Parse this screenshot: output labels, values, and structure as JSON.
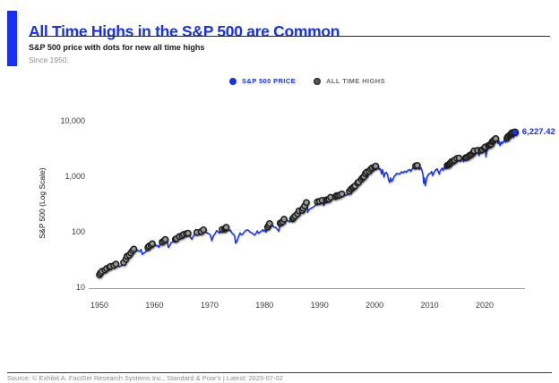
{
  "header": {
    "title": "All Time Highs in the S&P 500 are Common",
    "subtitle": "S&P 500 price with dots for new all time highs",
    "note": "Since 1950."
  },
  "legend": {
    "items": [
      {
        "label": "S&P 500 PRICE",
        "color": "#1631f2"
      },
      {
        "label": "ALL TIME HIGHS",
        "color": "#565656"
      }
    ]
  },
  "footer": {
    "source": "Source: © Exhibit A, FactSet Research Systems Inc., Standard & Poor's | Latest: 2025-07-02"
  },
  "colors": {
    "accent_blue": "#1631f2",
    "ath_dot_fill": "#969696",
    "ath_dot_ring": "#1f1f1f",
    "axis_gray": "#9b9b9b"
  },
  "chart_data": {
    "type": "line",
    "title": "All Time Highs in the S&P 500 are Common",
    "ylabel": "S&P 500 (Log Scale)",
    "yscale": "log",
    "ylim": [
      10,
      10000
    ],
    "yticks": [
      {
        "v": 10000,
        "label": "10,000"
      },
      {
        "v": 1000,
        "label": "1,000"
      },
      {
        "v": 100,
        "label": "100"
      },
      {
        "v": 10,
        "label": "10"
      }
    ],
    "xticks": [
      {
        "v": 1950,
        "label": "1950"
      },
      {
        "v": 1960,
        "label": "1960"
      },
      {
        "v": 1970,
        "label": "1970"
      },
      {
        "v": 1980,
        "label": "1980"
      },
      {
        "v": 1990,
        "label": "1990"
      },
      {
        "v": 2000,
        "label": "2000"
      },
      {
        "v": 2010,
        "label": "2010"
      },
      {
        "v": 2020,
        "label": "2020"
      }
    ],
    "grid": false,
    "legend_position": "top-center",
    "end_label": "6,227.42",
    "last_value": 6227.42,
    "ath_definition": "gray dot at each point where the series sets a new running maximum; final point is a blue dot",
    "series_name": "S&P 500 PRICE",
    "points": [
      [
        1950.0,
        16.8
      ],
      [
        1950.2,
        18.1
      ],
      [
        1950.45,
        19.4
      ],
      [
        1950.55,
        16.9
      ],
      [
        1950.75,
        18.6
      ],
      [
        1951.0,
        20.4
      ],
      [
        1951.3,
        21.7
      ],
      [
        1951.5,
        21.0
      ],
      [
        1951.8,
        23.0
      ],
      [
        1952.0,
        23.8
      ],
      [
        1952.3,
        23.4
      ],
      [
        1952.6,
        24.6
      ],
      [
        1953.0,
        26.2
      ],
      [
        1953.3,
        25.0
      ],
      [
        1953.7,
        23.4
      ],
      [
        1954.0,
        24.8
      ],
      [
        1954.4,
        28.0
      ],
      [
        1954.8,
        32.0
      ],
      [
        1955.0,
        36.0
      ],
      [
        1955.4,
        37.9
      ],
      [
        1955.7,
        41.5
      ],
      [
        1956.0,
        45.5
      ],
      [
        1956.25,
        48.8
      ],
      [
        1956.5,
        46.3
      ],
      [
        1956.75,
        45.3
      ],
      [
        1957.0,
        46.2
      ],
      [
        1957.3,
        44.0
      ],
      [
        1957.55,
        47.9
      ],
      [
        1957.8,
        39.0
      ],
      [
        1958.0,
        41.1
      ],
      [
        1958.4,
        43.4
      ],
      [
        1958.8,
        52.0
      ],
      [
        1959.0,
        55.2
      ],
      [
        1959.4,
        57.5
      ],
      [
        1959.6,
        60.7
      ],
      [
        1959.9,
        57.4
      ],
      [
        1960.0,
        59.9
      ],
      [
        1960.3,
        55.3
      ],
      [
        1960.6,
        56.8
      ],
      [
        1960.8,
        52.3
      ],
      [
        1961.0,
        58.1
      ],
      [
        1961.4,
        65.3
      ],
      [
        1961.7,
        68.5
      ],
      [
        1961.96,
        72.6
      ],
      [
        1962.2,
        69.6
      ],
      [
        1962.35,
        65.2
      ],
      [
        1962.5,
        52.3
      ],
      [
        1962.75,
        56.3
      ],
      [
        1963.0,
        63.1
      ],
      [
        1963.4,
        66.6
      ],
      [
        1963.8,
        73.2
      ],
      [
        1964.0,
        75.0
      ],
      [
        1964.5,
        81.7
      ],
      [
        1965.0,
        84.8
      ],
      [
        1965.3,
        89.3
      ],
      [
        1965.5,
        84.1
      ],
      [
        1965.8,
        92.4
      ],
      [
        1966.1,
        94.1
      ],
      [
        1966.4,
        86.1
      ],
      [
        1966.6,
        77.1
      ],
      [
        1966.8,
        73.2
      ],
      [
        1967.0,
        80.3
      ],
      [
        1967.4,
        94.0
      ],
      [
        1967.7,
        97.6
      ],
      [
        1968.0,
        96.5
      ],
      [
        1968.2,
        89.1
      ],
      [
        1968.5,
        100.5
      ],
      [
        1968.9,
        108.4
      ],
      [
        1969.1,
        103.9
      ],
      [
        1969.4,
        97.7
      ],
      [
        1969.6,
        94.5
      ],
      [
        1969.9,
        92.1
      ],
      [
        1970.0,
        90.3
      ],
      [
        1970.2,
        85.9
      ],
      [
        1970.4,
        69.3
      ],
      [
        1970.7,
        84.2
      ],
      [
        1971.0,
        92.2
      ],
      [
        1971.3,
        104.8
      ],
      [
        1971.6,
        99.0
      ],
      [
        1971.8,
        94.2
      ],
      [
        1972.0,
        102.1
      ],
      [
        1972.3,
        110.3
      ],
      [
        1972.55,
        107.1
      ],
      [
        1972.75,
        111.2
      ],
      [
        1972.9,
        116.9
      ],
      [
        1973.03,
        120.2
      ],
      [
        1973.3,
        109.8
      ],
      [
        1973.6,
        104.3
      ],
      [
        1973.8,
        108.3
      ],
      [
        1974.0,
        97.6
      ],
      [
        1974.3,
        90.3
      ],
      [
        1974.55,
        86.0
      ],
      [
        1974.75,
        62.3
      ],
      [
        1975.0,
        68.6
      ],
      [
        1975.3,
        83.6
      ],
      [
        1975.55,
        95.2
      ],
      [
        1975.8,
        88.1
      ],
      [
        1976.0,
        90.2
      ],
      [
        1976.4,
        101.6
      ],
      [
        1976.7,
        107.8
      ],
      [
        1977.0,
        107.5
      ],
      [
        1977.4,
        98.4
      ],
      [
        1977.8,
        94.3
      ],
      [
        1978.0,
        90.2
      ],
      [
        1978.2,
        86.9
      ],
      [
        1978.5,
        95.5
      ],
      [
        1978.7,
        103.9
      ],
      [
        1978.9,
        94.1
      ],
      [
        1979.0,
        96.1
      ],
      [
        1979.4,
        101.8
      ],
      [
        1979.7,
        108.6
      ],
      [
        1979.85,
        102.9
      ],
      [
        1980.0,
        107.9
      ],
      [
        1980.25,
        98.2
      ],
      [
        1980.55,
        121.4
      ],
      [
        1980.75,
        130.4
      ],
      [
        1980.92,
        140.5
      ],
      [
        1981.1,
        129.6
      ],
      [
        1981.4,
        132.8
      ],
      [
        1981.7,
        122.3
      ],
      [
        1982.0,
        120.4
      ],
      [
        1982.3,
        111.9
      ],
      [
        1982.6,
        102.4
      ],
      [
        1982.85,
        143.0
      ],
      [
        1983.0,
        145.3
      ],
      [
        1983.3,
        152.9
      ],
      [
        1983.55,
        168.1
      ],
      [
        1983.8,
        163.5
      ],
      [
        1984.0,
        164.9
      ],
      [
        1984.3,
        157.3
      ],
      [
        1984.55,
        150.1
      ],
      [
        1984.8,
        166.1
      ],
      [
        1985.1,
        171.6
      ],
      [
        1985.3,
        180.7
      ],
      [
        1985.55,
        191.9
      ],
      [
        1985.8,
        189.8
      ],
      [
        1986.0,
        211.3
      ],
      [
        1986.25,
        238.9
      ],
      [
        1986.5,
        236.1
      ],
      [
        1986.7,
        231.3
      ],
      [
        1986.85,
        243.0
      ],
      [
        1987.0,
        264.5
      ],
      [
        1987.3,
        292.5
      ],
      [
        1987.6,
        336.8
      ],
      [
        1987.78,
        282.7
      ],
      [
        1987.82,
        223.9
      ],
      [
        1988.0,
        247.1
      ],
      [
        1988.3,
        258.9
      ],
      [
        1988.6,
        272.0
      ],
      [
        1988.85,
        277.7
      ],
      [
        1989.1,
        294.0
      ],
      [
        1989.4,
        309.6
      ],
      [
        1989.6,
        346.6
      ],
      [
        1989.8,
        340.2
      ],
      [
        1990.0,
        353.4
      ],
      [
        1990.2,
        332.0
      ],
      [
        1990.45,
        368.9
      ],
      [
        1990.75,
        295.5
      ],
      [
        1991.0,
        330.2
      ],
      [
        1991.2,
        375.2
      ],
      [
        1991.45,
        380.0
      ],
      [
        1991.7,
        387.8
      ],
      [
        1992.0,
        417.1
      ],
      [
        1992.3,
        403.7
      ],
      [
        1992.6,
        415.0
      ],
      [
        1992.9,
        431.4
      ],
      [
        1993.1,
        448.9
      ],
      [
        1993.4,
        450.2
      ],
      [
        1993.7,
        461.8
      ],
      [
        1994.05,
        482.0
      ],
      [
        1994.3,
        445.8
      ],
      [
        1994.6,
        458.3
      ],
      [
        1994.9,
        453.7
      ],
      [
        1995.1,
        478.6
      ],
      [
        1995.4,
        533.4
      ],
      [
        1995.7,
        584.4
      ],
      [
        1996.0,
        615.9
      ],
      [
        1996.2,
        645.5
      ],
      [
        1996.45,
        670.6
      ],
      [
        1996.6,
        635.3
      ],
      [
        1996.9,
        757.0
      ],
      [
        1997.1,
        786.2
      ],
      [
        1997.3,
        737.7
      ],
      [
        1997.6,
        885.1
      ],
      [
        1997.85,
        947.0
      ],
      [
        1998.05,
        980.3
      ],
      [
        1998.3,
        1111.8
      ],
      [
        1998.55,
        1186.8
      ],
      [
        1998.75,
        957.3
      ],
      [
        1999.0,
        1229.2
      ],
      [
        1999.3,
        1335.2
      ],
      [
        1999.55,
        1418.8
      ],
      [
        1999.75,
        1247.4
      ],
      [
        2000.0,
        1469.3
      ],
      [
        2000.2,
        1527.5
      ],
      [
        2000.35,
        1356.6
      ],
      [
        2000.65,
        1520.8
      ],
      [
        2000.85,
        1314.9
      ],
      [
        2001.05,
        1373.7
      ],
      [
        2001.25,
        1103.3
      ],
      [
        2001.45,
        1312.8
      ],
      [
        2001.7,
        965.8
      ],
      [
        2001.9,
        1139.5
      ],
      [
        2002.1,
        1172.5
      ],
      [
        2002.35,
        1076.9
      ],
      [
        2002.55,
        847.8
      ],
      [
        2002.75,
        776.8
      ],
      [
        2002.9,
        936.3
      ],
      [
        2003.1,
        807.5
      ],
      [
        2003.3,
        858.5
      ],
      [
        2003.55,
        998.7
      ],
      [
        2003.8,
        1050.7
      ],
      [
        2004.0,
        1131.1
      ],
      [
        2004.25,
        1107.3
      ],
      [
        2004.6,
        1104.2
      ],
      [
        2004.9,
        1211.9
      ],
      [
        2005.2,
        1156.9
      ],
      [
        2005.5,
        1234.2
      ],
      [
        2005.75,
        1176.8
      ],
      [
        2006.0,
        1280.1
      ],
      [
        2006.4,
        1325.8
      ],
      [
        2006.55,
        1223.7
      ],
      [
        2006.8,
        1335.9
      ],
      [
        2007.05,
        1438.2
      ],
      [
        2007.2,
        1374.1
      ],
      [
        2007.45,
        1530.6
      ],
      [
        2007.6,
        1455.3
      ],
      [
        2007.75,
        1565.2
      ],
      [
        2007.95,
        1468.4
      ],
      [
        2008.15,
        1330.6
      ],
      [
        2008.4,
        1426.6
      ],
      [
        2008.6,
        1280.0
      ],
      [
        2008.72,
        1166.4
      ],
      [
        2008.85,
        968.8
      ],
      [
        2008.92,
        752.4
      ],
      [
        2009.05,
        931.8
      ],
      [
        2009.2,
        676.5
      ],
      [
        2009.45,
        919.3
      ],
      [
        2009.7,
        1057.1
      ],
      [
        2009.95,
        1115.1
      ],
      [
        2010.2,
        1150.5
      ],
      [
        2010.35,
        1217.3
      ],
      [
        2010.55,
        1030.7
      ],
      [
        2010.8,
        1183.3
      ],
      [
        2011.0,
        1257.6
      ],
      [
        2011.2,
        1331.1
      ],
      [
        2011.35,
        1363.6
      ],
      [
        2011.6,
        1192.8
      ],
      [
        2011.75,
        1099.2
      ],
      [
        2011.9,
        1253.3
      ],
      [
        2012.05,
        1312.4
      ],
      [
        2012.3,
        1408.5
      ],
      [
        2012.45,
        1278.0
      ],
      [
        2012.7,
        1465.8
      ],
      [
        2012.85,
        1353.3
      ],
      [
        2013.0,
        1426.2
      ],
      [
        2013.2,
        1569.2
      ],
      [
        2013.35,
        1593.4
      ],
      [
        2013.5,
        1606.3
      ],
      [
        2013.65,
        1685.7
      ],
      [
        2013.8,
        1744.5
      ],
      [
        2014.0,
        1848.4
      ],
      [
        2014.1,
        1741.9
      ],
      [
        2014.3,
        1872.3
      ],
      [
        2014.55,
        1960.2
      ],
      [
        2014.75,
        1862.5
      ],
      [
        2014.95,
        2090.6
      ],
      [
        2015.1,
        1992.7
      ],
      [
        2015.35,
        2130.8
      ],
      [
        2015.55,
        2063.1
      ],
      [
        2015.65,
        1867.6
      ],
      [
        2015.85,
        2109.8
      ],
      [
        2016.05,
        1940.2
      ],
      [
        2016.15,
        1829.1
      ],
      [
        2016.4,
        2091.6
      ],
      [
        2016.55,
        2166.2
      ],
      [
        2016.75,
        2190.2
      ],
      [
        2016.9,
        2085.2
      ],
      [
        2017.05,
        2280.9
      ],
      [
        2017.3,
        2390.9
      ],
      [
        2017.55,
        2453.5
      ],
      [
        2017.8,
        2575.3
      ],
      [
        2018.0,
        2743.2
      ],
      [
        2018.07,
        2872.9
      ],
      [
        2018.15,
        2581.0
      ],
      [
        2018.35,
        2670.1
      ],
      [
        2018.55,
        2790.4
      ],
      [
        2018.72,
        2930.8
      ],
      [
        2018.85,
        2658.7
      ],
      [
        2018.97,
        2351.1
      ],
      [
        2019.1,
        2704.1
      ],
      [
        2019.35,
        2945.8
      ],
      [
        2019.45,
        2744.5
      ],
      [
        2019.6,
        3025.9
      ],
      [
        2019.75,
        2887.6
      ],
      [
        2019.95,
        3230.8
      ],
      [
        2020.1,
        3386.2
      ],
      [
        2020.18,
        2954.2
      ],
      [
        2020.23,
        2237.4
      ],
      [
        2020.4,
        2863.7
      ],
      [
        2020.55,
        3130.1
      ],
      [
        2020.67,
        3580.8
      ],
      [
        2020.73,
        3269.9
      ],
      [
        2020.9,
        3621.6
      ],
      [
        2021.05,
        3756.1
      ],
      [
        2021.2,
        3811.2
      ],
      [
        2021.35,
        4181.2
      ],
      [
        2021.55,
        4297.5
      ],
      [
        2021.7,
        4522.7
      ],
      [
        2021.8,
        4307.5
      ],
      [
        2021.95,
        4712.0
      ],
      [
        2022.02,
        4796.6
      ],
      [
        2022.15,
        4326.5
      ],
      [
        2022.3,
        4631.6
      ],
      [
        2022.45,
        3900.8
      ],
      [
        2022.6,
        4305.2
      ],
      [
        2022.72,
        3666.8
      ],
      [
        2022.8,
        3585.6
      ],
      [
        2022.9,
        4080.1
      ],
      [
        2023.05,
        3839.5
      ],
      [
        2023.15,
        4179.8
      ],
      [
        2023.25,
        3970.2
      ],
      [
        2023.45,
        4205.5
      ],
      [
        2023.6,
        4588.9
      ],
      [
        2023.8,
        4117.4
      ],
      [
        2023.95,
        4594.6
      ],
      [
        2024.05,
        4839.8
      ],
      [
        2024.2,
        5137.1
      ],
      [
        2024.3,
        5254.4
      ],
      [
        2024.4,
        5035.7
      ],
      [
        2024.55,
        5460.5
      ],
      [
        2024.65,
        5667.2
      ],
      [
        2024.72,
        5408.4
      ],
      [
        2024.85,
        5864.7
      ],
      [
        2024.95,
        6090.3
      ],
      [
        2025.05,
        5881.6
      ],
      [
        2025.12,
        6144.2
      ],
      [
        2025.2,
        5580.9
      ],
      [
        2025.28,
        4982.8
      ],
      [
        2025.35,
        5663.9
      ],
      [
        2025.45,
        6000.4
      ],
      [
        2025.5,
        6227.42
      ]
    ]
  }
}
